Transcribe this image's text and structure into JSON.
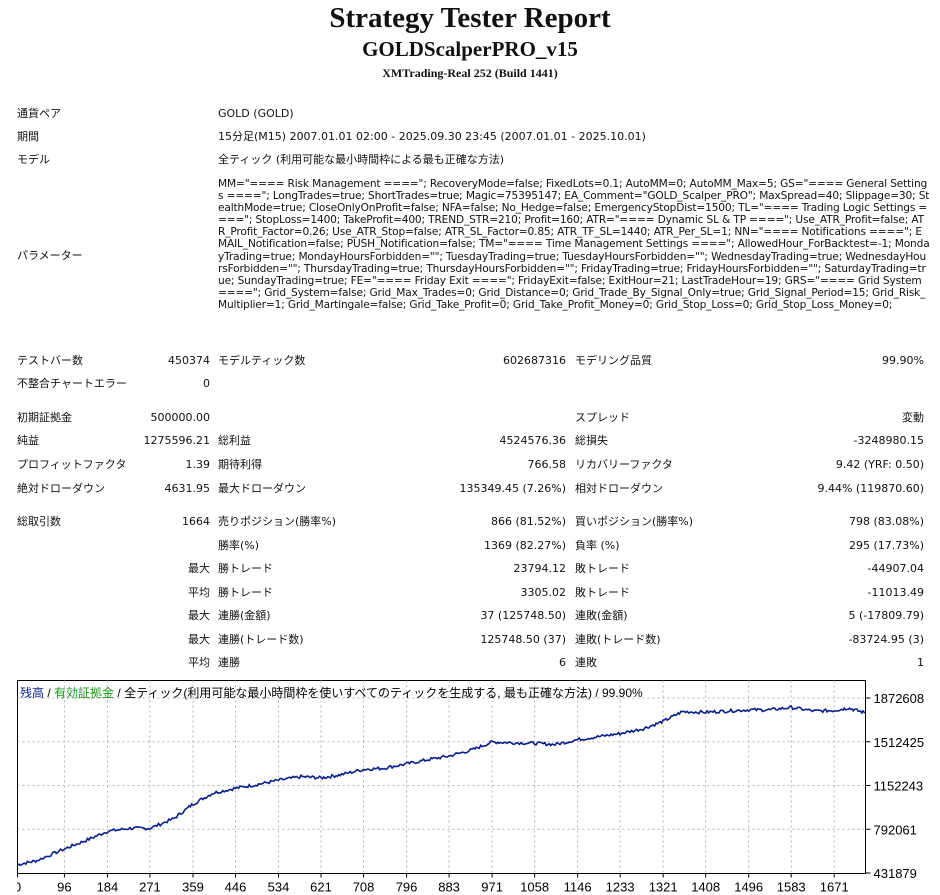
{
  "header": {
    "title": "Strategy Tester Report",
    "expert": "GOLDScalperPRO_v15",
    "server": "XMTrading-Real 252 (Build 1441)"
  },
  "info": {
    "symbol_label": "通貨ペア",
    "symbol": "GOLD (GOLD)",
    "period_label": "期間",
    "period": "15分足(M15) 2007.01.01 02:00 - 2025.09.30 23:45 (2007.01.01 - 2025.10.01)",
    "model_label": "モデル",
    "model": "全ティック (利用可能な最小時間枠による最も正確な方法)",
    "params_label": "パラメーター",
    "params": "MM=\"==== Risk Management ====\"; RecoveryMode=false; FixedLots=0.1; AutoMM=0; AutoMM_Max=5; GS=\"==== General Settings ====\"; LongTrades=true; ShortTrades=true; Magic=75395147; EA_Comment=\"GOLD_Scalper_PRO\"; MaxSpread=40; Slippage=30; StealthMode=true; CloseOnlyOnProfit=false; NFA=false; No_Hedge=false; EmergencyStopDist=1500; TL=\"==== Trading Logic Settings ====\"; StopLoss=1400; TakeProfit=400; TREND_STR=210; Profit=160; ATR=\"==== Dynamic SL & TP ====\"; Use_ATR_Profit=false; ATR_Profit_Factor=0.26; Use_ATR_Stop=false; ATR_SL_Factor=0.85; ATR_TF_SL=1440; ATR_Per_SL=1; NN=\"==== Notifications ====\"; EMAIL_Notification=false; PUSH_Notification=false; TM=\"==== Time Management Settings ====\"; AllowedHour_ForBacktest=-1; MondayTrading=true; MondayHoursForbidden=\"\"; TuesdayTrading=true; TuesdayHoursForbidden=\"\"; WednesdayTrading=true; WednesdayHoursForbidden=\"\"; ThursdayTrading=true; ThursdayHoursForbidden=\"\"; FridayTrading=true; FridayHoursForbidden=\"\"; SaturdayTrading=true; SundayTrading=true; FE=\"==== Friday Exit ====\"; FridayExit=false; ExitHour=21; LastTradeHour=19; GRS=\"==== Grid System ====\"; Grid_System=false; Grid_Max_Trades=0; Grid_Distance=0; Grid_Trade_By_Signal_Only=true; Grid_Signal_Period=15; Grid_Risk_Multiplier=1; Grid_Martingale=false; Grid_Take_Profit=0; Grid_Take_Profit_Money=0; Grid_Stop_Loss=0; Grid_Stop_Loss_Money=0;"
  },
  "stats": {
    "bars_label": "テストバー数",
    "bars": "450374",
    "ticks_label": "モデルティック数",
    "ticks": "602687316",
    "quality_label": "モデリング品質",
    "quality": "99.90%",
    "mismatch_label": "不整合チャートエラー",
    "mismatch": "0",
    "deposit_label": "初期証拠金",
    "deposit": "500000.00",
    "spread_label": "スプレッド",
    "spread": "変動",
    "net_label": "純益",
    "net": "1275596.21",
    "gross_profit_label": "総利益",
    "gross_profit": "4524576.36",
    "gross_loss_label": "総損失",
    "gross_loss": "-3248980.15",
    "pf_label": "プロフィットファクタ",
    "pf": "1.39",
    "expected_label": "期待利得",
    "expected": "766.58",
    "recovery_label": "リカバリーファクタ",
    "recovery": "9.42 (YRF: 0.50)",
    "abs_dd_label": "絶対ドローダウン",
    "abs_dd": "4631.95",
    "max_dd_label": "最大ドローダウン",
    "max_dd": "135349.45 (7.26%)",
    "rel_dd_label": "相対ドローダウン",
    "rel_dd": "9.44% (119870.60)",
    "total_trades_label": "総取引数",
    "total_trades": "1664",
    "short_label": "売りポジション(勝率%)",
    "short": "866 (81.52%)",
    "long_label": "買いポジション(勝率%)",
    "long": "798 (83.08%)",
    "win_rate_label": "勝率(%)",
    "win_rate": "1369 (82.27%)",
    "loss_rate_label": "負率 (%)",
    "loss_rate": "295 (17.73%)",
    "max_word": "最大",
    "avg_word": "平均",
    "win_trade_label": "勝トレード",
    "loss_trade_label": "敗トレード",
    "largest_win": "23794.12",
    "largest_loss": "-44907.04",
    "avg_win": "3305.02",
    "avg_loss": "-11013.49",
    "cons_wins_money_label": "連勝(金額)",
    "cons_wins_money": "37 (125748.50)",
    "cons_losses_money_label": "連敗(金額)",
    "cons_losses_money": "5 (-17809.79)",
    "cons_profit_label": "連勝(トレード数)",
    "cons_profit": "125748.50 (37)",
    "cons_loss_label": "連敗(トレード数)",
    "cons_loss": "-83724.95 (3)",
    "avg_cons_wins_label": "連勝",
    "avg_cons_wins": "6",
    "avg_cons_losses_label": "連敗",
    "avg_cons_losses": "1"
  },
  "chart_data": {
    "type": "line",
    "legend": {
      "balance": "残高",
      "sep1": " / ",
      "equity": "有効証拠金",
      "sep2": " / ",
      "rest": "全ティック(利用可能な最小時間枠を使いすべてのティックを生成する, 最も正確な方法) / 99.90%"
    },
    "colors": {
      "balance": "#0a1e8c",
      "equity": "#1a9a1a",
      "grid": "#b4b4b4",
      "frame": "#000000"
    },
    "x_ticks": [
      "0",
      "96",
      "184",
      "271",
      "359",
      "446",
      "534",
      "621",
      "708",
      "796",
      "883",
      "971",
      "1058",
      "1146",
      "1233",
      "1321",
      "1408",
      "1496",
      "1583",
      "1671"
    ],
    "y_ticks": [
      "1872608",
      "1512425",
      "1152243",
      "792061",
      "431879"
    ],
    "ylim": [
      431879,
      1872608
    ],
    "xlim": [
      0,
      1735
    ],
    "series": [
      {
        "name": "残高",
        "x": [
          0,
          40,
          96,
          140,
          184,
          230,
          271,
          320,
          359,
          400,
          446,
          490,
          534,
          580,
          621,
          660,
          708,
          750,
          796,
          840,
          883,
          930,
          971,
          1010,
          1058,
          1100,
          1146,
          1190,
          1233,
          1280,
          1321,
          1360,
          1408,
          1450,
          1496,
          1540,
          1583,
          1630,
          1671,
          1700,
          1735
        ],
        "y": [
          500000,
          535000,
          630000,
          700000,
          775000,
          800000,
          800000,
          880000,
          1000000,
          1090000,
          1130000,
          1160000,
          1195000,
          1225000,
          1215000,
          1240000,
          1285000,
          1295000,
          1330000,
          1365000,
          1395000,
          1445000,
          1510000,
          1505000,
          1500000,
          1490000,
          1530000,
          1555000,
          1580000,
          1620000,
          1680000,
          1760000,
          1755000,
          1765000,
          1775000,
          1775000,
          1795000,
          1765000,
          1770000,
          1790000,
          1750000
        ]
      }
    ]
  }
}
